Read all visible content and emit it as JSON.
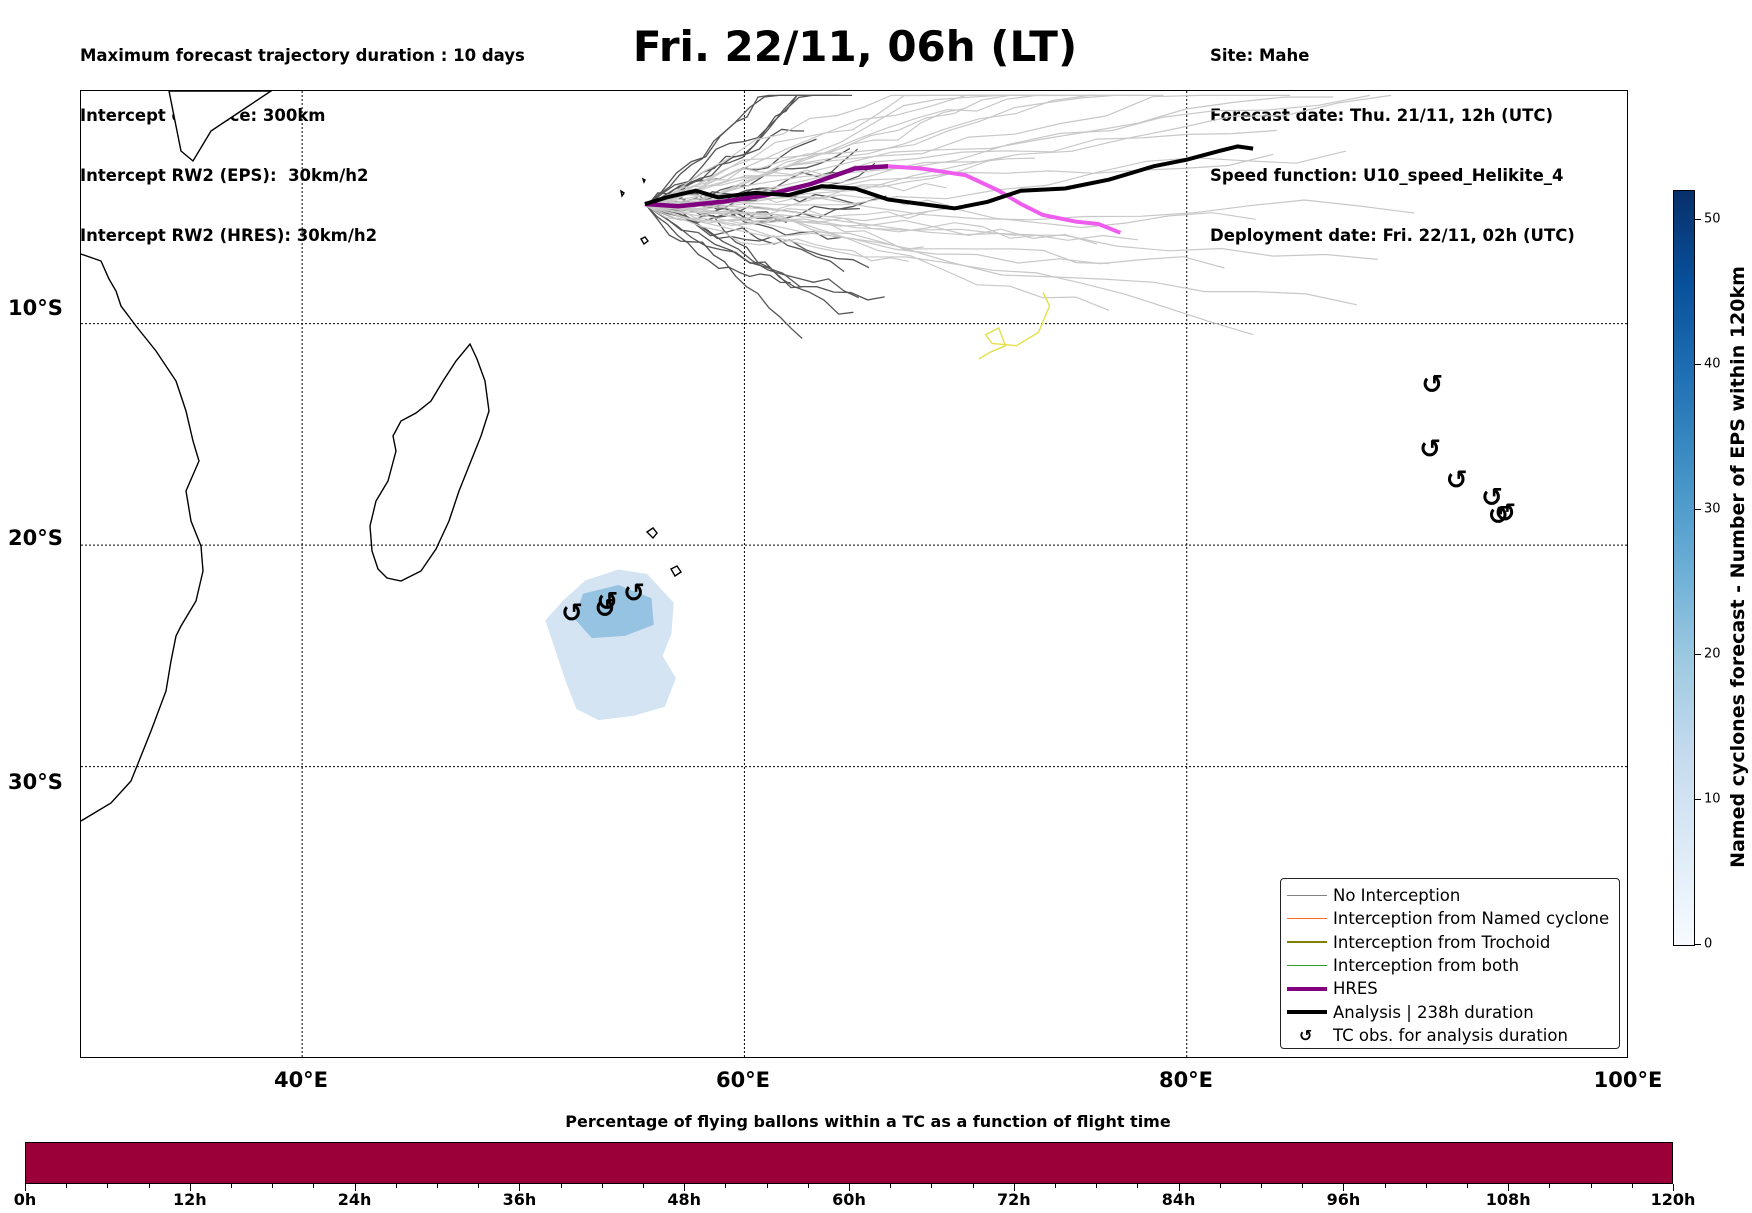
{
  "header_left": [
    "Maximum forecast trajectory duration : 10 days",
    "Intercept distance: 300km",
    "Intercept RW2 (EPS):  30km/h2",
    "Intercept RW2 (HRES): 30km/h2"
  ],
  "title": "Fri. 22/11, 06h (LT)",
  "header_right": [
    "Site: Mahe",
    "Forecast date: Thu. 21/11, 12h (UTC)",
    "Speed function: U10_speed_Helikite_4",
    "Deployment date: Fri. 22/11, 02h (UTC)"
  ],
  "map": {
    "lon_range": [
      30,
      100
    ],
    "lat_range": [
      -43.2,
      0.5
    ],
    "lat_labels": [
      {
        "lat": -10,
        "label": "10°S"
      },
      {
        "lat": -20,
        "label": "20°S"
      },
      {
        "lat": -30,
        "label": "30°S"
      }
    ],
    "lon_labels": [
      {
        "lon": 40,
        "label": "40°E"
      },
      {
        "lon": 60,
        "label": "60°E"
      },
      {
        "lon": 80,
        "label": "80°E"
      },
      {
        "lon": 100,
        "label": "100°E"
      }
    ],
    "hres_track": [
      [
        55.5,
        -4.6
      ],
      [
        57,
        -4.7
      ],
      [
        59,
        -4.5
      ],
      [
        61,
        -4.2
      ],
      [
        63,
        -3.7
      ],
      [
        65,
        -3.0
      ],
      [
        66.5,
        -2.9
      ],
      [
        68,
        -3.0
      ],
      [
        70,
        -3.3
      ],
      [
        71.5,
        -4.0
      ],
      [
        72.5,
        -4.6
      ],
      [
        73.5,
        -5.1
      ],
      [
        75,
        -5.4
      ],
      [
        76,
        -5.5
      ],
      [
        77,
        -5.9
      ]
    ],
    "analysis_track": [
      [
        55.5,
        -4.6
      ],
      [
        56.5,
        -4.3
      ],
      [
        57.8,
        -4.0
      ],
      [
        58.8,
        -4.3
      ],
      [
        60.5,
        -4.1
      ],
      [
        62,
        -4.2
      ],
      [
        63.5,
        -3.8
      ],
      [
        65,
        -3.9
      ],
      [
        66.5,
        -4.4
      ],
      [
        68,
        -4.6
      ],
      [
        69.5,
        -4.8
      ],
      [
        71,
        -4.5
      ],
      [
        72.5,
        -4.0
      ],
      [
        74.5,
        -3.9
      ],
      [
        76.5,
        -3.5
      ],
      [
        78.5,
        -2.9
      ],
      [
        80,
        -2.6
      ],
      [
        81.5,
        -2.2
      ],
      [
        82.3,
        -2.0
      ],
      [
        83,
        -2.1
      ]
    ],
    "tc_obs": [
      [
        52.2,
        -23.1
      ],
      [
        53.7,
        -22.9
      ],
      [
        53.8,
        -22.6
      ],
      [
        55,
        -22.2
      ],
      [
        91.1,
        -12.8
      ],
      [
        91.0,
        -15.7
      ],
      [
        92.2,
        -17.1
      ],
      [
        93.8,
        -17.9
      ],
      [
        94.1,
        -18.7
      ],
      [
        94.4,
        -18.6
      ]
    ],
    "ocean_blob": [
      [
        51.8,
        -22.5
      ],
      [
        52.8,
        -21.6
      ],
      [
        54.3,
        -21.1
      ],
      [
        55.6,
        -21.3
      ],
      [
        56.8,
        -22.6
      ],
      [
        56.7,
        -24.0
      ],
      [
        56.3,
        -25.0
      ],
      [
        56.9,
        -26.0
      ],
      [
        56.4,
        -27.3
      ],
      [
        55,
        -27.7
      ],
      [
        53.4,
        -27.9
      ],
      [
        52.4,
        -27.4
      ],
      [
        51.9,
        -26.1
      ],
      [
        51.4,
        -24.6
      ],
      [
        51.0,
        -23.4
      ]
    ],
    "ocean_blob_core": [
      [
        52.7,
        -22.2
      ],
      [
        54.3,
        -21.8
      ],
      [
        55.8,
        -22.4
      ],
      [
        55.9,
        -23.6
      ],
      [
        54.6,
        -24.1
      ],
      [
        53.1,
        -24.2
      ],
      [
        52.3,
        -23.3
      ]
    ]
  },
  "legend": [
    {
      "label": "No Interception",
      "color": "#808080",
      "style": "thin"
    },
    {
      "label": "Interception from Named cyclone",
      "color": "#ff6a1f",
      "style": "thin"
    },
    {
      "label": "Interception from Trochoid",
      "color": "#808000",
      "style": "thin"
    },
    {
      "label": "Interception from both",
      "color": "#2ca02c",
      "style": "thin"
    },
    {
      "label": "HRES",
      "color": "#800080",
      "style": "thick"
    },
    {
      "label": "Analysis | 238h duration",
      "color": "#000000",
      "style": "thick"
    },
    {
      "label": "TC obs. for analysis duration",
      "color": "#000000",
      "style": "symbol"
    }
  ],
  "colorbar": {
    "title": "Named cyclones forecast - Number of EPS within 120km",
    "min": 0,
    "max": 52,
    "ticks": [
      0,
      10,
      20,
      30,
      40,
      50
    ],
    "colormap": "Blues"
  },
  "bottom_bar": {
    "title": "Percentage of flying ballons within a TC as a function of flight time",
    "ticks": [
      "0h",
      "12h",
      "24h",
      "36h",
      "48h",
      "60h",
      "72h",
      "84h",
      "96h",
      "108h",
      "120h"
    ],
    "fill_color": "#9b0038"
  },
  "tc_symbol": "↺"
}
